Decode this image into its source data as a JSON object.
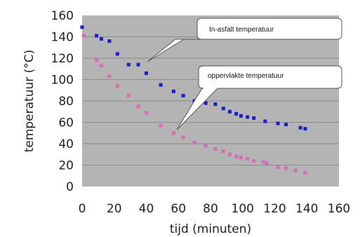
{
  "chart_data": {
    "type": "scatter",
    "xlabel": "tijd (minuten)",
    "ylabel": "temperatuur (°C)",
    "xlim": [
      0,
      160
    ],
    "ylim": [
      0,
      160
    ],
    "x_ticks": [
      "0",
      "20",
      "40",
      "60",
      "80",
      "100",
      "120",
      "140",
      "160"
    ],
    "y_ticks": [
      "0",
      "20",
      "40",
      "60",
      "80",
      "100",
      "120",
      "140",
      "160"
    ],
    "grid": "horizontal",
    "plot_background": "#b4b4b4",
    "series": [
      {
        "name": "In-asfalt temperatuur",
        "color": "#1c1ccc",
        "x": [
          0,
          9,
          12,
          17,
          22,
          29,
          35,
          40,
          49,
          57,
          63,
          70,
          77,
          83,
          88,
          92,
          96,
          99,
          103,
          107,
          114,
          122,
          127,
          136,
          139
        ],
        "y": [
          149,
          141,
          138,
          136,
          124,
          114,
          114,
          106,
          95,
          89,
          85,
          80,
          78,
          77,
          73,
          70,
          68,
          66,
          65,
          64,
          61,
          59,
          58,
          55,
          54
        ]
      },
      {
        "name": "oppervlakte temperatuur",
        "color": "#d96bb3",
        "x": [
          1,
          9,
          12,
          17,
          22,
          29,
          35,
          40,
          49,
          57,
          63,
          70,
          77,
          83,
          88,
          92,
          96,
          99,
          103,
          107,
          113,
          115,
          122,
          127,
          133,
          139
        ],
        "y": [
          141,
          118,
          113,
          103,
          94,
          85,
          75,
          69,
          57,
          50,
          46,
          41,
          38,
          35,
          33,
          30,
          28,
          27,
          26,
          24,
          23,
          22,
          18,
          17,
          15,
          13
        ]
      }
    ]
  }
}
